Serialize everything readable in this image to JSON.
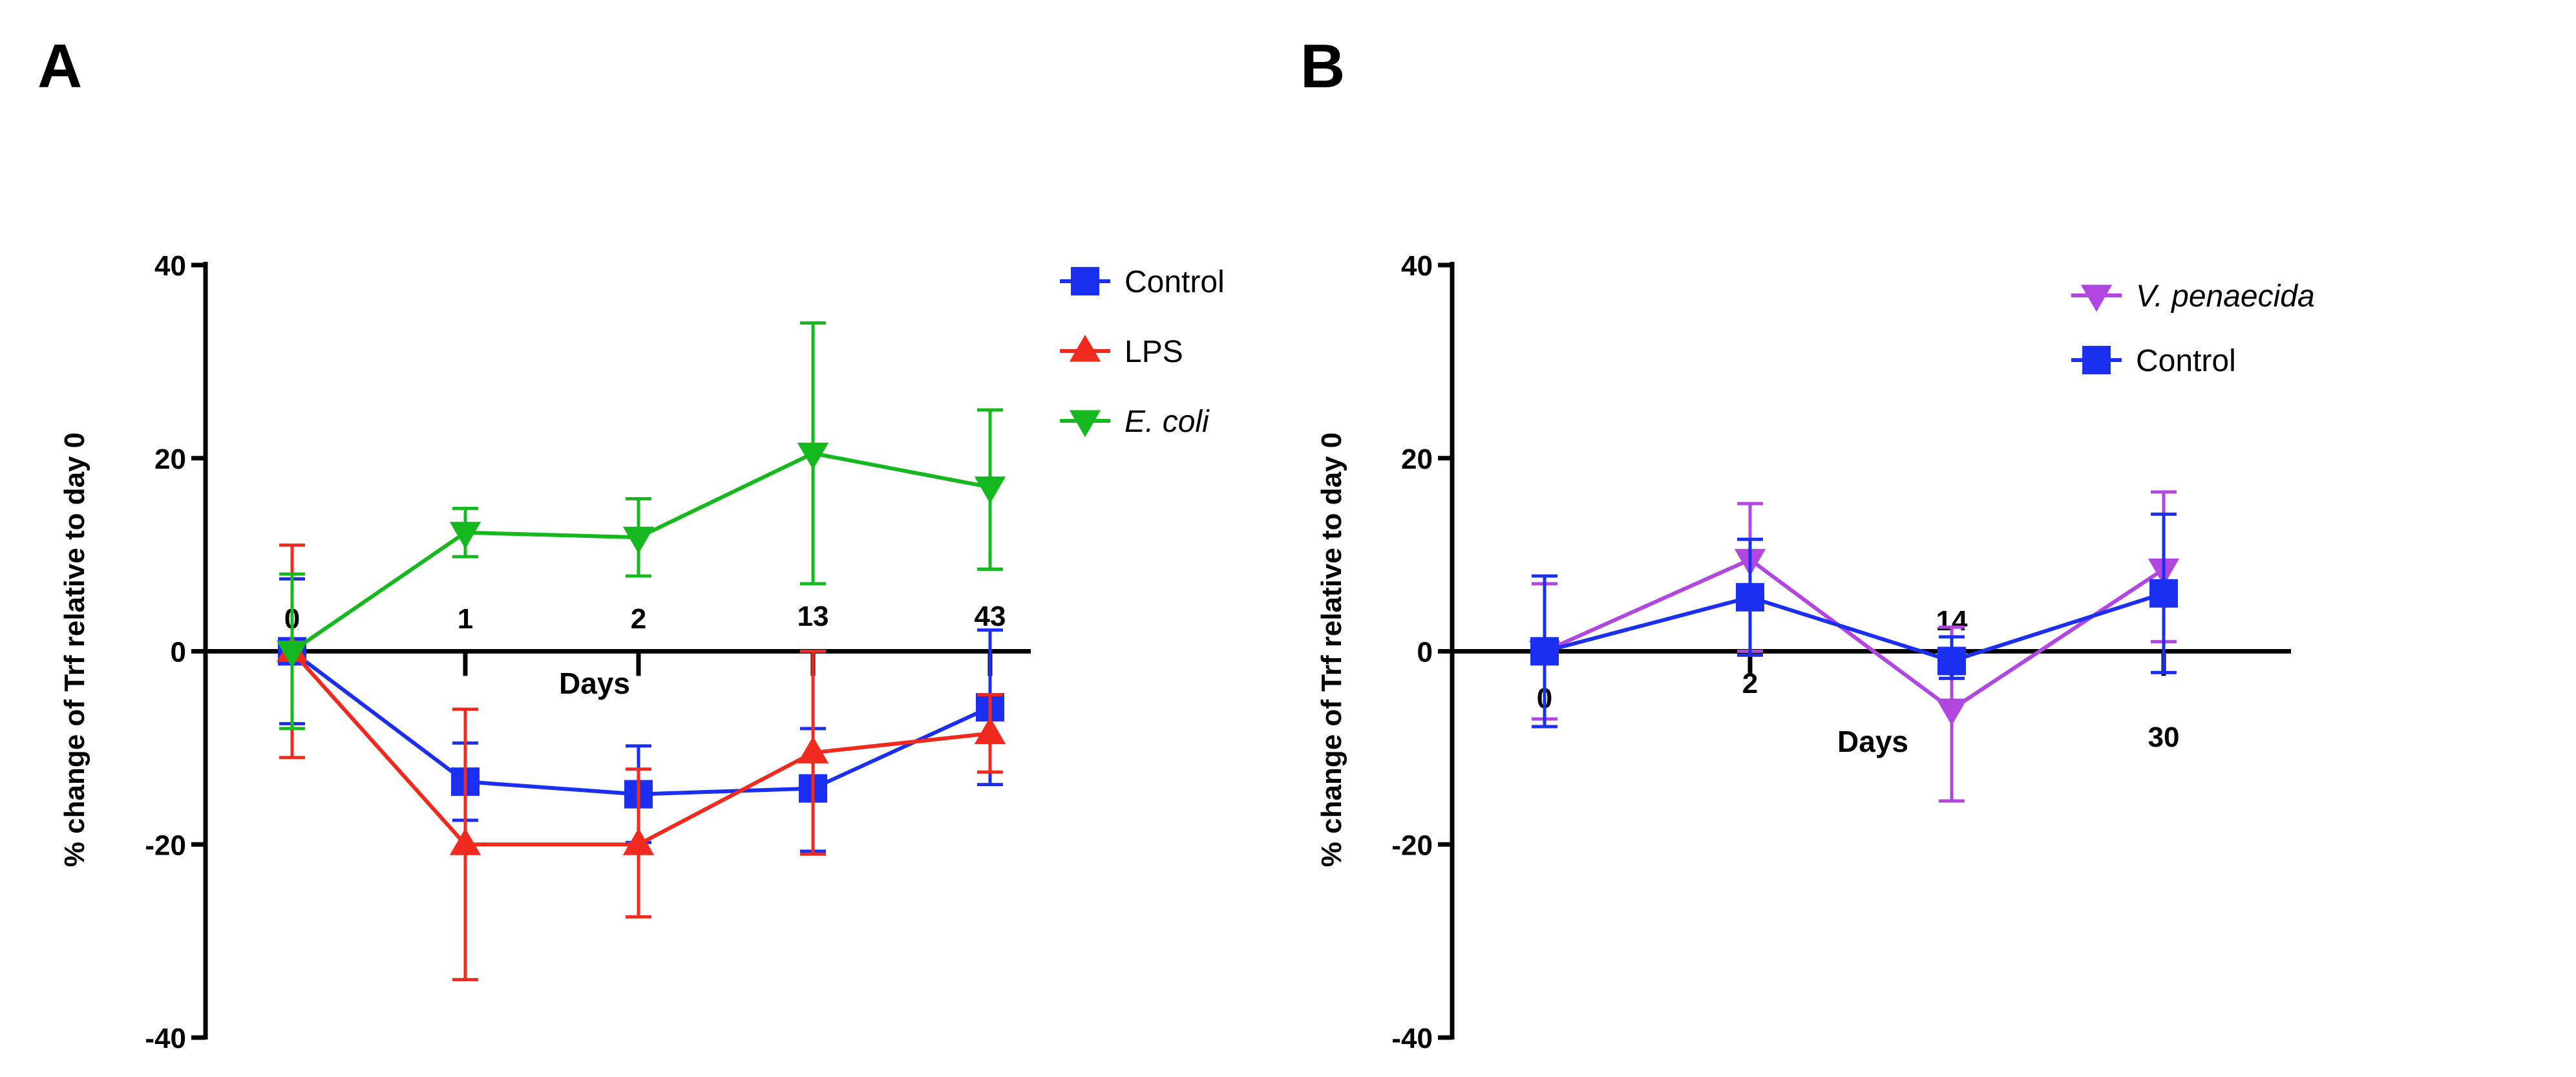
{
  "chart_data": [
    {
      "panel_label": "A",
      "type": "line",
      "xlabel": "Days",
      "ylabel": "% change of Trf relative to day 0",
      "ylim": [
        -40,
        40
      ],
      "yticks": [
        "40",
        "20",
        "0",
        "-20",
        "-40"
      ],
      "categories": [
        "0",
        "1",
        "2",
        "13",
        "43"
      ],
      "series": [
        {
          "name": "Control",
          "italic": false,
          "marker": "square",
          "color": "#1a2ff0",
          "values": [
            0,
            -13.5,
            -14.8,
            -14.2,
            -5.8
          ],
          "err_upper": [
            7.5,
            4,
            5,
            6.2,
            8
          ],
          "err_lower": [
            7.5,
            4,
            5,
            6.5,
            8
          ]
        },
        {
          "name": "LPS",
          "italic": false,
          "marker": "triangle-up",
          "color": "#f02a1f",
          "values": [
            0,
            -20,
            -20,
            -10.5,
            -8.5
          ],
          "err_upper": [
            11,
            14,
            7.8,
            10.5,
            4
          ],
          "err_lower": [
            11,
            14,
            7.5,
            10.5,
            4
          ]
        },
        {
          "name": "E. coli",
          "italic": true,
          "marker": "triangle-down",
          "color": "#16b81f",
          "values": [
            0,
            12.3,
            11.8,
            20.5,
            17
          ],
          "err_upper": [
            8,
            2.5,
            4,
            13.5,
            8
          ],
          "err_lower": [
            8,
            2.5,
            4,
            13.5,
            8.5
          ]
        }
      ]
    },
    {
      "panel_label": "B",
      "type": "line",
      "xlabel": "Days",
      "ylabel": "% change of Trf relative to day 0",
      "ylim": [
        -40,
        40
      ],
      "yticks": [
        "40",
        "20",
        "0",
        "-20",
        "-40"
      ],
      "categories": [
        "0",
        "2",
        "14",
        "30"
      ],
      "series": [
        {
          "name": "V. penaecida",
          "italic": true,
          "marker": "triangle-down",
          "color": "#b146e0",
          "values": [
            0,
            9.5,
            -6,
            8.5
          ],
          "err_upper": [
            7,
            5.8,
            8.5,
            8
          ],
          "err_lower": [
            7,
            9.5,
            9.5,
            7.5
          ]
        },
        {
          "name": "Control",
          "italic": false,
          "marker": "square",
          "color": "#1a2ff0",
          "values": [
            0,
            5.6,
            -1,
            6
          ],
          "err_upper": [
            7.8,
            6,
            2.5,
            8.2
          ],
          "err_lower": [
            7.8,
            6,
            1.8,
            8.2
          ]
        }
      ]
    }
  ]
}
